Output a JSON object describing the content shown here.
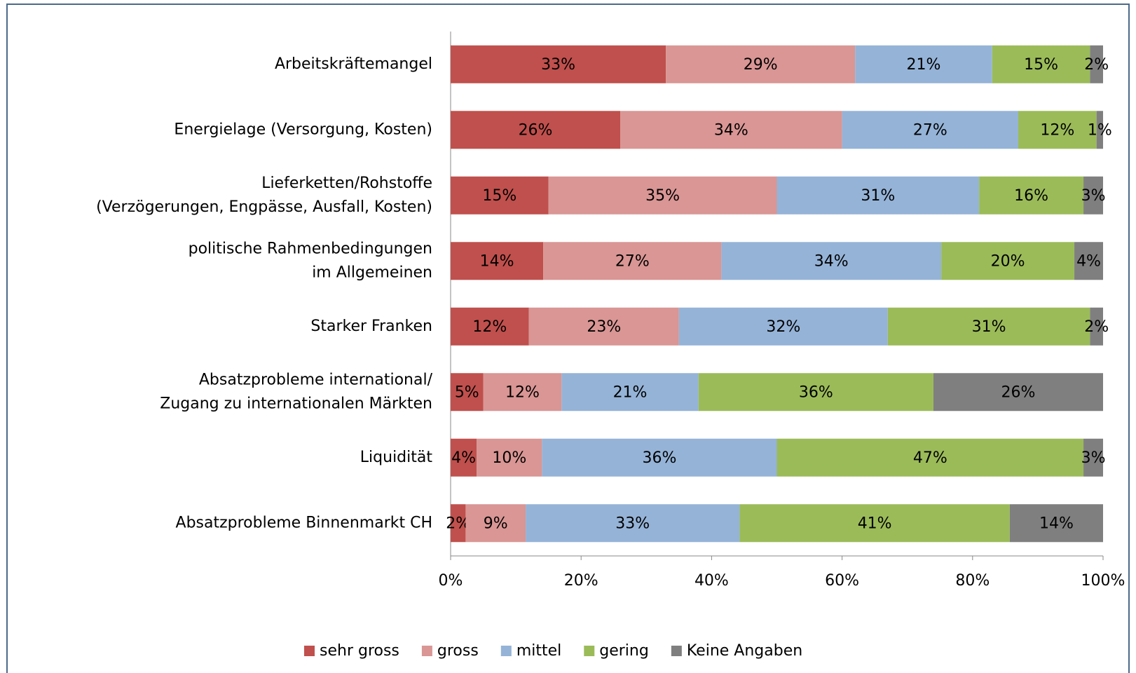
{
  "chart_data": {
    "type": "stacked-bar-horizontal",
    "categories": [
      "Arbeitskräftemangel",
      "Energielage (Versorgung, Kosten)",
      "Lieferketten/Rohstoffe\n(Verzögerungen, Engpässe, Ausfall, Kosten)",
      "politische Rahmenbedingungen\nim Allgemeinen",
      "Starker Franken",
      "Absatzprobleme international/\nZugang zu internationalen Märkten",
      "Liquidität",
      "Absatzprobleme Binnenmarkt CH"
    ],
    "series": [
      {
        "name": "sehr gross",
        "color": "#c0504d",
        "values": [
          33,
          26,
          15,
          14.2,
          12,
          5,
          4,
          2.3
        ],
        "value_labels": [
          "33%",
          "26%",
          "15%",
          "14%",
          "12%",
          "5%",
          "4%",
          "2%"
        ]
      },
      {
        "name": "gross",
        "color": "#d99694",
        "values": [
          29,
          34,
          35,
          27.3,
          23,
          12,
          10,
          9.2
        ],
        "value_labels": [
          "29%",
          "34%",
          "35%",
          "27%",
          "23%",
          "12%",
          "10%",
          "9%"
        ]
      },
      {
        "name": "mittel",
        "color": "#95b3d7",
        "values": [
          21,
          27,
          31,
          33.7,
          32,
          21,
          36,
          32.8
        ],
        "value_labels": [
          "21%",
          "27%",
          "31%",
          "34%",
          "32%",
          "21%",
          "36%",
          "33%"
        ]
      },
      {
        "name": "gering",
        "color": "#9bbb59",
        "values": [
          15,
          12,
          16,
          20.4,
          31,
          36,
          47,
          41.4
        ],
        "value_labels": [
          "15%",
          "12%",
          "16%",
          "20%",
          "31%",
          "36%",
          "47%",
          "41%"
        ]
      },
      {
        "name": "Keine Angaben",
        "color": "#7f7f7f",
        "values": [
          2,
          1,
          3,
          4.4,
          2,
          26,
          3,
          14.3
        ],
        "value_labels": [
          "2%",
          "1%",
          "3%",
          "4%",
          "2%",
          "26%",
          "3%",
          "14%"
        ]
      }
    ],
    "xlim": [
      0,
      100
    ],
    "xticks": [
      {
        "value": 0,
        "label": "0%"
      },
      {
        "value": 20,
        "label": "20%"
      },
      {
        "value": 40,
        "label": "40%"
      },
      {
        "value": 60,
        "label": "60%"
      },
      {
        "value": 80,
        "label": "80%"
      },
      {
        "value": 100,
        "label": "100%"
      }
    ],
    "legend": "bottom"
  }
}
